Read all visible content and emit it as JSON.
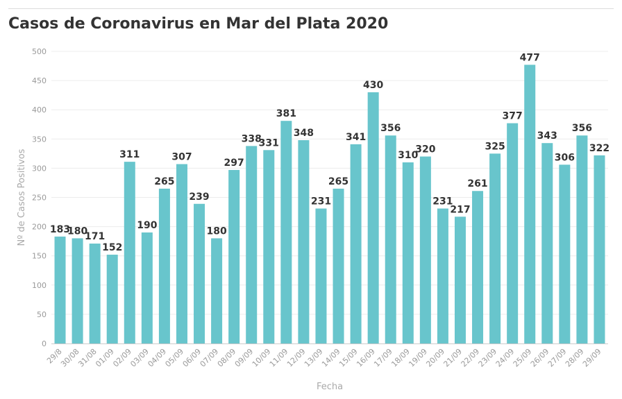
{
  "title": "Casos de Coronavirus en Mar del Plata 2020",
  "chart_data": {
    "type": "bar",
    "title": "Casos de Coronavirus en Mar del Plata 2020",
    "xlabel": "Fecha",
    "ylabel": "Nº de Casos Positivos",
    "ylim": [
      0,
      500
    ],
    "yticks": [
      0,
      50,
      100,
      150,
      200,
      250,
      300,
      350,
      400,
      450,
      500
    ],
    "grid": true,
    "legend": "none",
    "bar_color": "#68c5cc",
    "categories": [
      "29/8",
      "30/08",
      "31/08",
      "01/09",
      "02/09",
      "03/09",
      "04/09",
      "05/09",
      "06/09",
      "07/09",
      "08/09",
      "09/09",
      "10/09",
      "11/09",
      "12/09",
      "13/09",
      "14/09",
      "15/09",
      "16/09",
      "17/09",
      "18/09",
      "19/09",
      "20/09",
      "21/09",
      "22/09",
      "23/09",
      "24/09",
      "25/09",
      "26/09",
      "27/09",
      "28/09",
      "29/09"
    ],
    "values": [
      183,
      180,
      171,
      152,
      311,
      190,
      265,
      307,
      239,
      180,
      297,
      338,
      331,
      381,
      348,
      231,
      265,
      341,
      430,
      356,
      310,
      320,
      231,
      217,
      261,
      325,
      377,
      477,
      343,
      306,
      356,
      322
    ]
  }
}
